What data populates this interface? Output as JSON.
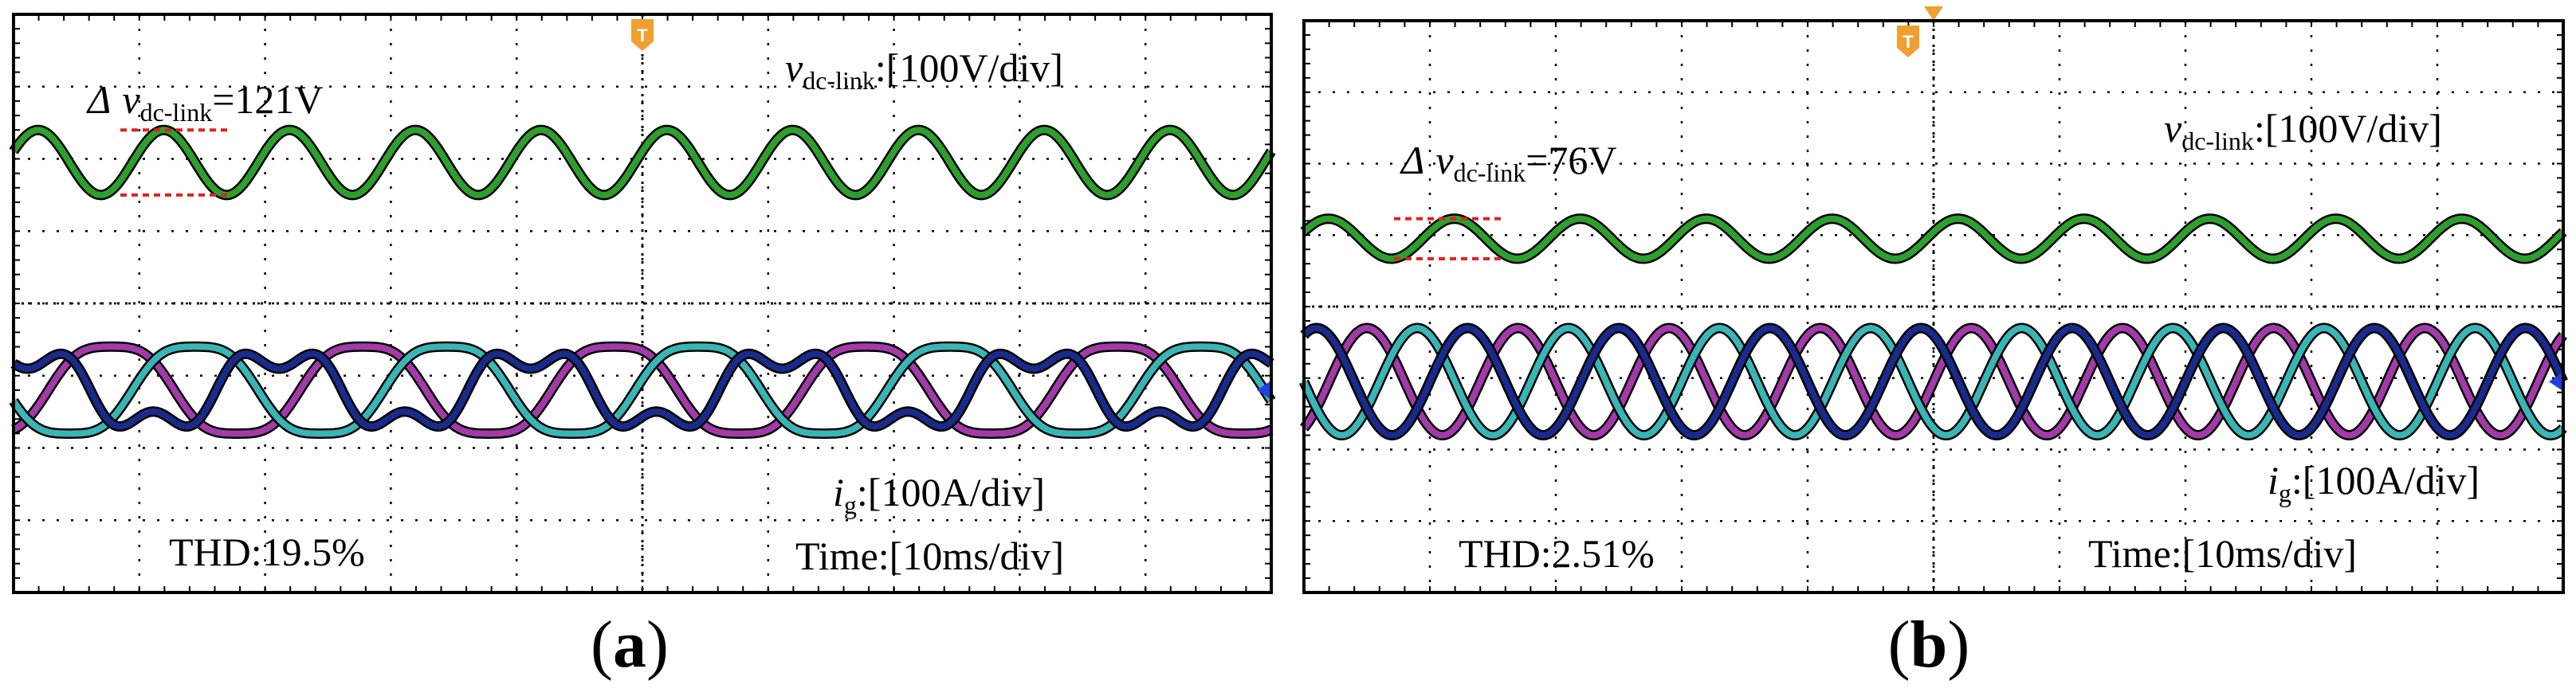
{
  "chart_data": [
    {
      "type": "line",
      "panel_id": "a",
      "caption_letter": "a",
      "time_scale_label": "Time:[10ms/div]",
      "divisions": {
        "x": 10,
        "y": 8
      },
      "voltage_label_var": "v",
      "voltage_label_sub": "dc-link",
      "voltage_label_scale": ":[100V/div]",
      "ripple_label_prefix": "Δ",
      "ripple_label_var": "v",
      "ripple_label_sub": "dc-link",
      "ripple_label_value": "=121V",
      "current_label_var": "i",
      "current_label_sub": "g",
      "current_label_scale": ":[100A/div]",
      "thd_label": "THD:19.5%",
      "trigger_marker": "T",
      "series": [
        {
          "name": "vdc-link",
          "color": "#2e9e2e",
          "kind": "sine",
          "center_div": 2.05,
          "amplitude_div": 0.45,
          "period_div": 1.0,
          "phase_deg": 200
        },
        {
          "name": "ig phase 1",
          "color": "#a23aa8",
          "kind": "sine",
          "center_div": 5.2,
          "amplitude_div": 0.75,
          "period_div": 2.0,
          "phase_deg": 130,
          "distortion": 0.18
        },
        {
          "name": "ig phase 2",
          "color": "#3ab5b5",
          "kind": "sine",
          "center_div": 5.2,
          "amplitude_div": 0.75,
          "period_div": 2.0,
          "phase_deg": 10,
          "distortion": 0.18
        },
        {
          "name": "ig phase 3",
          "color": "#1a2a8a",
          "kind": "sine",
          "center_div": 5.2,
          "amplitude_div": 0.75,
          "period_div": 2.0,
          "phase_deg": 250,
          "distortion": 0.55
        }
      ]
    },
    {
      "type": "line",
      "panel_id": "b",
      "caption_letter": "b",
      "time_scale_label": "Time:[10ms/div]",
      "divisions": {
        "x": 10,
        "y": 8
      },
      "voltage_label_var": "v",
      "voltage_label_sub": "dc-link",
      "voltage_label_scale": ":[100V/div]",
      "ripple_label_prefix": "Δ",
      "ripple_label_var": "v",
      "ripple_label_sub": "dc-link",
      "ripple_label_value": "=76V",
      "current_label_var": "i",
      "current_label_sub": "g",
      "current_label_scale": ":[100A/div]",
      "thd_label": "THD:2.51%",
      "trigger_marker": "T",
      "series": [
        {
          "name": "vdc-link",
          "color": "#2e9e2e",
          "kind": "sine",
          "center_div": 3.05,
          "amplitude_div": 0.28,
          "period_div": 1.0,
          "phase_deg": 200
        },
        {
          "name": "ig phase 1",
          "color": "#a23aa8",
          "kind": "sine",
          "center_div": 5.05,
          "amplitude_div": 0.75,
          "period_div": 1.2,
          "phase_deg": 120,
          "distortion": 0.0
        },
        {
          "name": "ig phase 2",
          "color": "#3ab5b5",
          "kind": "sine",
          "center_div": 5.05,
          "amplitude_div": 0.75,
          "period_div": 1.2,
          "phase_deg": 0,
          "distortion": 0.0
        },
        {
          "name": "ig phase 3",
          "color": "#1a2a8a",
          "kind": "sine",
          "center_div": 5.05,
          "amplitude_div": 0.75,
          "period_div": 1.2,
          "phase_deg": 240,
          "distortion": 0.0
        }
      ]
    }
  ],
  "colors": {
    "frame": "#000000",
    "grid": "#000000",
    "ripple_marker": "#e02020",
    "trigger": "#f0a030",
    "ground_marker": "#2040e0"
  }
}
